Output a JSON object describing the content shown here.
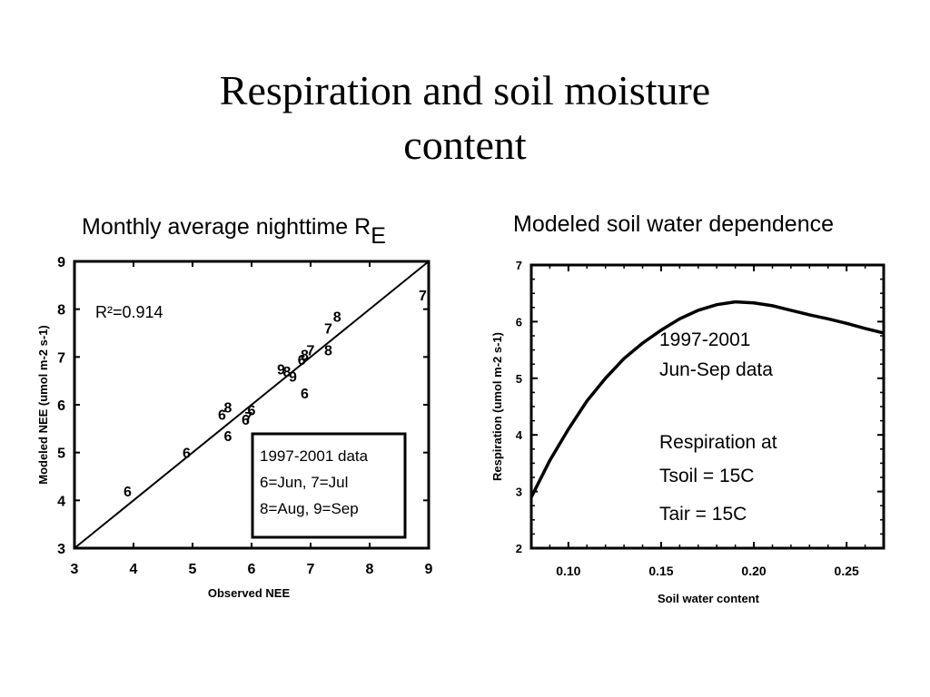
{
  "slide": {
    "title_line1": "Respiration and soil moisture",
    "title_line2": "content"
  },
  "chart_data": [
    {
      "type": "scatter",
      "title": "Monthly average nighttime R",
      "title_subscript": "E",
      "xlabel": "Observed NEE",
      "ylabel": "Modeled NEE  (umol m-2 s-1)",
      "xlim": [
        3,
        9
      ],
      "ylim": [
        3,
        9
      ],
      "xticks": [
        "3",
        "4",
        "5",
        "6",
        "7",
        "8",
        "9"
      ],
      "yticks": [
        "3",
        "4",
        "5",
        "6",
        "7",
        "8",
        "9"
      ],
      "annotation": "R²=0.914",
      "legend_box": [
        "1997-2001 data",
        "6=Jun, 7=Jul",
        "8=Aug, 9=Sep"
      ],
      "fit_line": [
        [
          3,
          3
        ],
        [
          9,
          9
        ]
      ],
      "points": [
        {
          "x": 3.9,
          "y": 4.2,
          "label": "6"
        },
        {
          "x": 4.9,
          "y": 5.0,
          "label": "6"
        },
        {
          "x": 5.5,
          "y": 5.8,
          "label": "6"
        },
        {
          "x": 5.6,
          "y": 5.95,
          "label": "8"
        },
        {
          "x": 5.6,
          "y": 5.35,
          "label": "6"
        },
        {
          "x": 5.9,
          "y": 5.7,
          "label": "6"
        },
        {
          "x": 5.95,
          "y": 5.75,
          "label": "7"
        },
        {
          "x": 6.0,
          "y": 5.9,
          "label": "6"
        },
        {
          "x": 6.5,
          "y": 6.75,
          "label": "9"
        },
        {
          "x": 6.6,
          "y": 6.7,
          "label": "8"
        },
        {
          "x": 6.7,
          "y": 6.6,
          "label": "9"
        },
        {
          "x": 6.85,
          "y": 6.95,
          "label": "6"
        },
        {
          "x": 6.9,
          "y": 7.05,
          "label": "8"
        },
        {
          "x": 7.0,
          "y": 7.15,
          "label": "7"
        },
        {
          "x": 6.9,
          "y": 6.25,
          "label": "6"
        },
        {
          "x": 7.3,
          "y": 7.15,
          "label": "8"
        },
        {
          "x": 7.3,
          "y": 7.6,
          "label": "7"
        },
        {
          "x": 7.45,
          "y": 7.85,
          "label": "8"
        },
        {
          "x": 8.9,
          "y": 8.3,
          "label": "7"
        }
      ]
    },
    {
      "type": "line",
      "title": "Modeled soil water dependence",
      "xlabel": "Soil water content",
      "ylabel": "Respiration (umol m-2 s-1)",
      "xlim": [
        0.08,
        0.27
      ],
      "ylim": [
        2,
        7
      ],
      "xticks": [
        "0.10",
        "0.15",
        "0.20",
        "0.25"
      ],
      "xtick_values": [
        0.1,
        0.15,
        0.2,
        0.25
      ],
      "yticks": [
        "2",
        "3",
        "4",
        "5",
        "6",
        "7"
      ],
      "annotation_lines": [
        "1997-2001",
        "Jun-Sep data",
        "",
        "Respiration at",
        "Tsoil = 15C",
        "Tair  = 15C"
      ],
      "x": [
        0.08,
        0.09,
        0.1,
        0.11,
        0.12,
        0.13,
        0.14,
        0.15,
        0.16,
        0.17,
        0.18,
        0.19,
        0.2,
        0.21,
        0.22,
        0.23,
        0.24,
        0.25,
        0.26,
        0.27
      ],
      "y": [
        2.9,
        3.55,
        4.1,
        4.6,
        5.0,
        5.35,
        5.62,
        5.85,
        6.05,
        6.2,
        6.3,
        6.35,
        6.33,
        6.28,
        6.2,
        6.12,
        6.05,
        5.97,
        5.88,
        5.8
      ]
    }
  ]
}
